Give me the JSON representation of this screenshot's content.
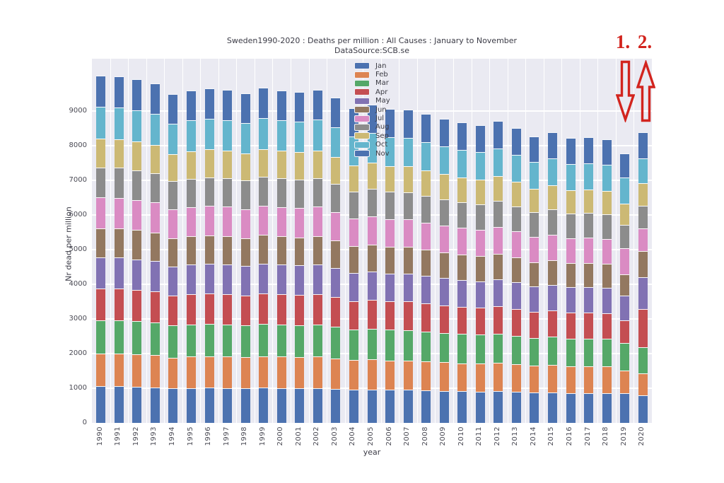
{
  "figure": {
    "title_line1": "Sweden1990-2020 : Deaths per million : All Causes : January to November",
    "title_line2": "DataSource:SCB.se",
    "xlabel": "year",
    "ylabel": "Nr dead per million",
    "plot_background": "#eaeaf2",
    "grid_color": "#ffffff",
    "text_color": "#3b3b46"
  },
  "y_ticks": [
    "0",
    "1000",
    "2000",
    "3000",
    "4000",
    "5000",
    "6000",
    "7000",
    "8000",
    "9000"
  ],
  "annotations": {
    "label_1": "1.",
    "label_2": "2.",
    "arrow_1_direction": "down",
    "arrow_2_direction": "up",
    "color": "#d2241e"
  },
  "chart_data": {
    "type": "bar",
    "stacked": true,
    "title": "Sweden1990-2020 : Deaths per million : All Causes : January to November",
    "subtitle": "DataSource:SCB.se",
    "xlabel": "year",
    "ylabel": "Nr dead per million",
    "ylim": [
      0,
      10500
    ],
    "grid": true,
    "legend_position": "upper-center-inside",
    "categories": [
      "1990",
      "1991",
      "1992",
      "1993",
      "1994",
      "1995",
      "1996",
      "1997",
      "1998",
      "1999",
      "2000",
      "2001",
      "2002",
      "2003",
      "2004",
      "2005",
      "2006",
      "2007",
      "2008",
      "2009",
      "2010",
      "2011",
      "2012",
      "2013",
      "2014",
      "2015",
      "2016",
      "2017",
      "2018",
      "2019",
      "2020"
    ],
    "series": [
      {
        "name": "Jan",
        "color": "#4c72b0",
        "values": [
          1051,
          1051,
          1041,
          1028,
          995,
          1006,
          1012,
          1008,
          998,
          1014,
          1007,
          1002,
          1009,
          984,
          953,
          964,
          951,
          949,
          935,
          921,
          909,
          901,
          914,
          893,
          867,
          879,
          862,
          864,
          859,
          865,
          796
        ]
      },
      {
        "name": "Feb",
        "color": "#dd8452",
        "values": [
          941,
          941,
          932,
          920,
          891,
          901,
          906,
          902,
          893,
          908,
          901,
          897,
          903,
          881,
          854,
          863,
          852,
          850,
          837,
          824,
          814,
          807,
          818,
          799,
          776,
          787,
          772,
          774,
          769,
          640,
          640
        ]
      },
      {
        "name": "Mar",
        "color": "#55a868",
        "values": [
          971,
          970,
          961,
          950,
          920,
          929,
          935,
          931,
          922,
          937,
          930,
          925,
          932,
          909,
          881,
          890,
          879,
          877,
          864,
          851,
          840,
          832,
          844,
          825,
          801,
          812,
          796,
          798,
          794,
          790,
          750
        ]
      },
      {
        "name": "Apr",
        "color": "#c44e52",
        "values": [
          911,
          910,
          902,
          891,
          863,
          872,
          877,
          874,
          865,
          879,
          873,
          868,
          875,
          853,
          826,
          835,
          824,
          823,
          810,
          798,
          788,
          781,
          792,
          774,
          752,
          762,
          747,
          749,
          745,
          670,
          1100
        ]
      },
      {
        "name": "May",
        "color": "#8172b3",
        "values": [
          891,
          890,
          882,
          871,
          844,
          853,
          858,
          854,
          846,
          859,
          854,
          849,
          855,
          834,
          808,
          817,
          806,
          805,
          793,
          781,
          771,
          764,
          774,
          757,
          735,
          745,
          731,
          732,
          728,
          715,
          915
        ]
      },
      {
        "name": "Jun",
        "color": "#937860",
        "values": [
          851,
          850,
          842,
          832,
          806,
          814,
          819,
          816,
          808,
          821,
          815,
          811,
          817,
          797,
          772,
          780,
          770,
          768,
          757,
          745,
          736,
          729,
          740,
          723,
          702,
          712,
          698,
          700,
          696,
          610,
          745
        ]
      },
      {
        "name": "Jul",
        "color": "#da8bc3",
        "values": [
          881,
          880,
          872,
          862,
          834,
          843,
          848,
          845,
          836,
          850,
          844,
          840,
          846,
          825,
          799,
          808,
          797,
          796,
          784,
          772,
          762,
          755,
          766,
          748,
          727,
          737,
          722,
          724,
          720,
          750,
          655
        ]
      },
      {
        "name": "Aug",
        "color": "#8c8c8c",
        "values": [
          861,
          860,
          852,
          842,
          815,
          824,
          829,
          826,
          817,
          830,
          825,
          820,
          826,
          806,
          781,
          789,
          779,
          777,
          766,
          754,
          745,
          738,
          748,
          731,
          710,
          720,
          706,
          708,
          704,
          665,
          650
        ]
      },
      {
        "name": "Sep",
        "color": "#ccb974",
        "values": [
          831,
          830,
          823,
          813,
          787,
          795,
          800,
          797,
          789,
          801,
          796,
          792,
          798,
          778,
          754,
          762,
          752,
          750,
          739,
          728,
          719,
          712,
          722,
          706,
          686,
          695,
          681,
          683,
          679,
          620,
          655
        ]
      },
      {
        "name": "Oct",
        "color": "#64b5cd",
        "values": [
          921,
          920,
          912,
          901,
          872,
          881,
          887,
          883,
          874,
          888,
          882,
          878,
          884,
          863,
          835,
          845,
          834,
          832,
          819,
          807,
          797,
          789,
          800,
          782,
          760,
          771,
          755,
          757,
          753,
          755,
          715
        ]
      },
      {
        "name": "Nov",
        "color": "#4c72b0",
        "values": [
          901,
          900,
          892,
          881,
          853,
          862,
          868,
          864,
          855,
          869,
          863,
          859,
          865,
          844,
          817,
          826,
          815,
          814,
          801,
          789,
          779,
          772,
          783,
          765,
          743,
          754,
          739,
          741,
          737,
          695,
          754
        ]
      }
    ]
  }
}
